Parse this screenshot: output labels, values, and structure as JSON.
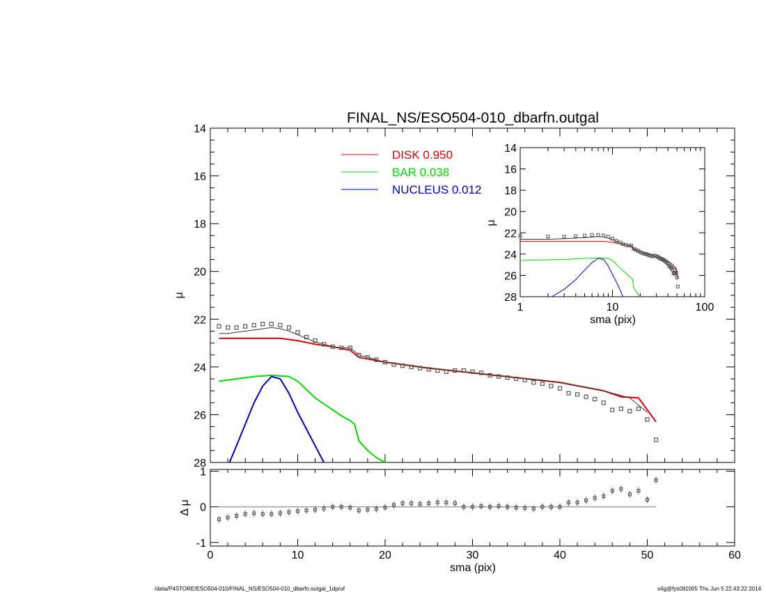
{
  "colors": {
    "disk": "#e00000",
    "bar": "#00dd00",
    "nucleus": "#0000c0",
    "data": "#555555",
    "model": "#333333"
  },
  "footer": {
    "left": "/data/P4STORE/ESO504-010/FINAL_NS/ESO504-010_dbarfn.outgal_1dprof",
    "right": "s4g@fys091005  Thu Jun  5 22:43:22 2014"
  },
  "chart_data": [
    {
      "type": "scatter",
      "title": "FINAL_NS/ESO504-010_dbarfn.outgal",
      "xlabel": "",
      "ylabel": "μ",
      "xlim": [
        0,
        60
      ],
      "ylim": [
        28,
        14
      ],
      "yticks": [
        "14",
        "16",
        "18",
        "20",
        "22",
        "24",
        "26",
        "28"
      ],
      "legend": {
        "placement": "top-center",
        "entries": [
          {
            "name": "DISK",
            "value": "0.950"
          },
          {
            "name": "BAR",
            "value": "0.038"
          },
          {
            "name": "NUCLEUS",
            "value": "0.012"
          }
        ]
      },
      "observed": {
        "x": [
          1,
          2,
          3,
          4,
          5,
          6,
          7,
          8,
          9,
          10,
          11,
          12,
          13,
          14,
          15,
          16,
          17,
          18,
          19,
          20,
          21,
          22,
          23,
          24,
          25,
          26,
          27,
          28,
          29,
          30,
          31,
          32,
          33,
          34,
          35,
          36,
          37,
          38,
          39,
          40,
          41,
          42,
          43,
          44,
          45,
          46,
          47,
          48,
          49,
          50,
          51
        ],
        "y": [
          22.3,
          22.35,
          22.35,
          22.3,
          22.25,
          22.2,
          22.2,
          22.25,
          22.35,
          22.55,
          22.75,
          22.9,
          23.05,
          23.15,
          23.2,
          23.2,
          23.5,
          23.6,
          23.7,
          23.8,
          23.9,
          23.95,
          24.0,
          24.05,
          24.1,
          24.15,
          24.2,
          24.15,
          24.15,
          24.2,
          24.25,
          24.35,
          24.4,
          24.45,
          24.5,
          24.55,
          24.65,
          24.7,
          24.8,
          24.9,
          25.1,
          25.15,
          25.25,
          25.35,
          25.5,
          25.8,
          25.75,
          25.85,
          25.75,
          26.2,
          27.05
        ]
      },
      "series": [
        {
          "name": "DISK",
          "x": [
            1,
            5,
            8,
            10,
            12,
            14,
            16,
            17,
            20,
            25,
            30,
            35,
            40,
            45,
            47,
            49,
            51
          ],
          "y": [
            22.8,
            22.8,
            22.8,
            22.9,
            23.05,
            23.15,
            23.3,
            23.6,
            23.8,
            24.05,
            24.25,
            24.45,
            24.65,
            25.0,
            25.25,
            25.3,
            26.3
          ]
        },
        {
          "name": "BAR",
          "x": [
            1,
            3,
            5,
            7,
            9,
            10,
            11,
            12,
            14,
            15,
            16,
            16.5,
            17,
            18,
            19,
            20
          ],
          "y": [
            24.6,
            24.5,
            24.4,
            24.35,
            24.4,
            24.6,
            24.95,
            25.3,
            25.8,
            26.05,
            26.25,
            26.4,
            27.1,
            27.5,
            27.8,
            28.0
          ]
        },
        {
          "name": "NUCLEUS",
          "x": [
            2.2,
            3,
            4,
            5,
            6,
            7,
            8,
            9,
            10,
            11,
            12,
            13
          ],
          "y": [
            28.0,
            27.3,
            26.4,
            25.5,
            24.8,
            24.4,
            24.5,
            25.1,
            25.9,
            26.6,
            27.3,
            28.0
          ]
        },
        {
          "name": "",
          "x": [
            1,
            2,
            3,
            4,
            5,
            6,
            7,
            8,
            9,
            10,
            11,
            12,
            13,
            14,
            15,
            16,
            17,
            18,
            20,
            25,
            30,
            35,
            40,
            45,
            48,
            50
          ],
          "y": [
            22.6,
            22.6,
            22.55,
            22.5,
            22.45,
            22.4,
            22.35,
            22.4,
            22.5,
            22.65,
            22.8,
            22.95,
            23.05,
            23.15,
            23.2,
            23.2,
            23.5,
            23.6,
            23.8,
            24.05,
            24.25,
            24.45,
            24.65,
            25.0,
            25.3,
            25.9
          ]
        }
      ]
    },
    {
      "type": "scatter",
      "title": "",
      "xlabel": "sma (pix)",
      "ylabel": "Δ μ",
      "xlim": [
        0,
        60
      ],
      "ylim": [
        -1.1,
        1.05
      ],
      "xticks": [
        "0",
        "10",
        "20",
        "30",
        "40",
        "50",
        "60"
      ],
      "yticks": [
        "1",
        "0",
        "-1"
      ],
      "residual": {
        "x": [
          1,
          2,
          3,
          4,
          5,
          6,
          7,
          8,
          9,
          10,
          11,
          12,
          13,
          14,
          15,
          16,
          17,
          18,
          19,
          20,
          21,
          22,
          23,
          24,
          25,
          26,
          27,
          28,
          29,
          30,
          31,
          32,
          33,
          34,
          35,
          36,
          37,
          38,
          39,
          40,
          41,
          42,
          43,
          44,
          45,
          46,
          47,
          48,
          49,
          50,
          51
        ],
        "y": [
          -0.35,
          -0.3,
          -0.25,
          -0.2,
          -0.18,
          -0.2,
          -0.2,
          -0.18,
          -0.15,
          -0.12,
          -0.1,
          -0.08,
          -0.05,
          0.0,
          0.0,
          -0.02,
          -0.1,
          -0.08,
          -0.06,
          -0.02,
          0.05,
          0.1,
          0.1,
          0.08,
          0.1,
          0.12,
          0.12,
          0.1,
          0.0,
          0.0,
          0.02,
          0.0,
          0.02,
          0.0,
          -0.02,
          -0.03,
          -0.05,
          0.0,
          0.0,
          0.0,
          0.12,
          0.12,
          0.18,
          0.25,
          0.3,
          0.45,
          0.5,
          0.35,
          0.45,
          0.2,
          0.75
        ]
      }
    },
    {
      "type": "scatter",
      "title": "",
      "xlabel": "sma (pix)",
      "ylabel": "μ",
      "xscale": "log",
      "xlim": [
        1,
        100
      ],
      "ylim": [
        28,
        14
      ],
      "xticks": [
        "1",
        "10",
        "100"
      ],
      "yticks": [
        "14",
        "16",
        "18",
        "20",
        "22",
        "24",
        "26",
        "28"
      ]
    }
  ]
}
